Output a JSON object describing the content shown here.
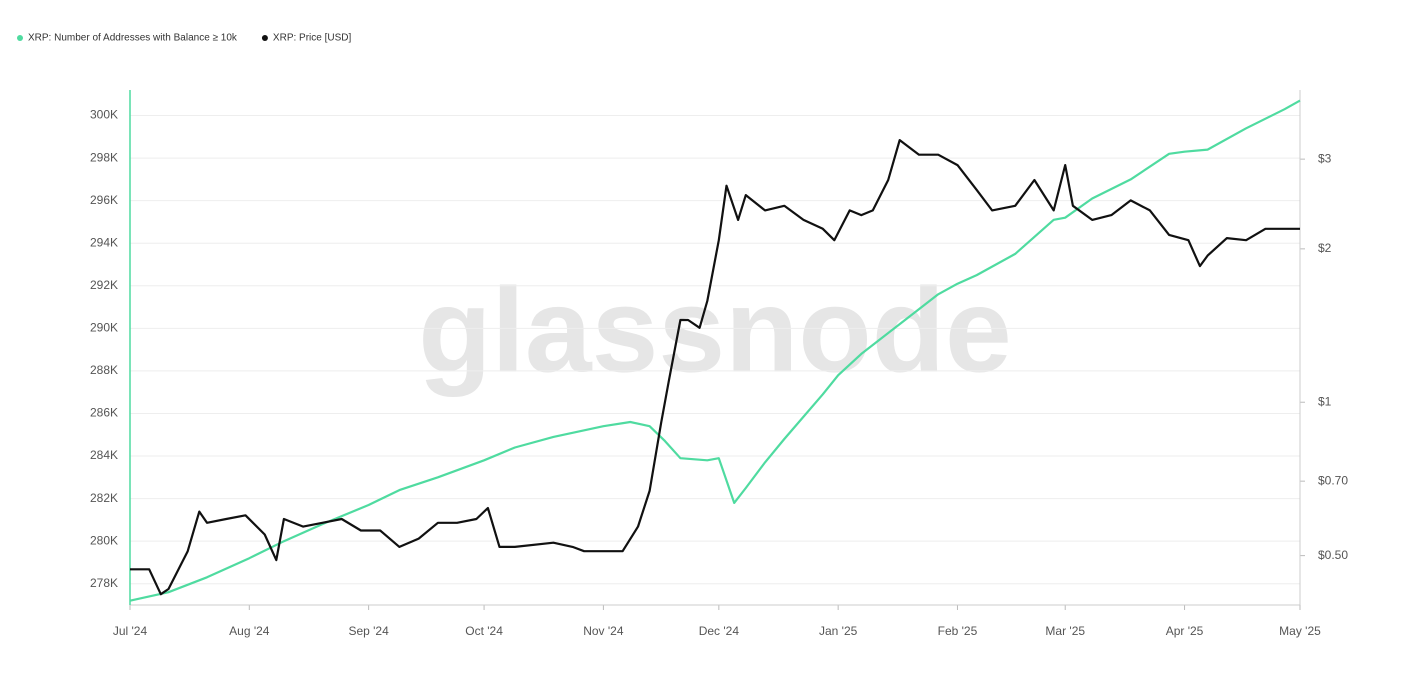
{
  "chart_data": {
    "type": "line",
    "watermark": "glassnode",
    "xlim": [
      0,
      304
    ],
    "xticks": [
      {
        "value": 0,
        "label": "Jul '24"
      },
      {
        "value": 31,
        "label": "Aug '24"
      },
      {
        "value": 62,
        "label": "Sep '24"
      },
      {
        "value": 92,
        "label": "Oct '24"
      },
      {
        "value": 123,
        "label": "Nov '24"
      },
      {
        "value": 153,
        "label": "Dec '24"
      },
      {
        "value": 184,
        "label": "Jan '25"
      },
      {
        "value": 215,
        "label": "Feb '25"
      },
      {
        "value": 243,
        "label": "Mar '25"
      },
      {
        "value": 274,
        "label": "Apr '25"
      },
      {
        "value": 304,
        "label": "May '25"
      }
    ],
    "ylim": [
      277000,
      301200
    ],
    "yticks": [
      {
        "value": 278000,
        "label": "278K"
      },
      {
        "value": 280000,
        "label": "280K"
      },
      {
        "value": 282000,
        "label": "282K"
      },
      {
        "value": 284000,
        "label": "284K"
      },
      {
        "value": 286000,
        "label": "286K"
      },
      {
        "value": 288000,
        "label": "288K"
      },
      {
        "value": 290000,
        "label": "290K"
      },
      {
        "value": 292000,
        "label": "292K"
      },
      {
        "value": 294000,
        "label": "294K"
      },
      {
        "value": 296000,
        "label": "296K"
      },
      {
        "value": 298000,
        "label": "298K"
      },
      {
        "value": 300000,
        "label": "300K"
      }
    ],
    "y2lim": [
      0.4,
      4.1
    ],
    "y2scale": "log",
    "y2ticks": [
      {
        "value": 0.5,
        "label": "$0.50"
      },
      {
        "value": 0.7,
        "label": "$0.70"
      },
      {
        "value": 1,
        "label": "$1"
      },
      {
        "value": 2,
        "label": "$2"
      },
      {
        "value": 3,
        "label": "$3"
      }
    ],
    "grid": true,
    "legend": "top-left",
    "series": [
      {
        "name": "XRP: Number of Addresses with Balance ≥ 10k",
        "color": "#4fdba0",
        "x": [
          0,
          10,
          20,
          31,
          40,
          50,
          62,
          70,
          80,
          92,
          100,
          110,
          123,
          130,
          135,
          139,
          143,
          150,
          153,
          157,
          160,
          165,
          170,
          180,
          184,
          190,
          200,
          210,
          215,
          220,
          230,
          240,
          243,
          250,
          260,
          270,
          274,
          280,
          290,
          300,
          304
        ],
        "values": [
          277200,
          277600,
          278300,
          279200,
          280000,
          280800,
          281700,
          282400,
          283000,
          283800,
          284400,
          284900,
          285400,
          285600,
          285400,
          284700,
          283900,
          283800,
          283900,
          281800,
          282500,
          283700,
          284800,
          286900,
          287800,
          288800,
          290200,
          291600,
          292100,
          292500,
          293500,
          295100,
          295200,
          296100,
          297000,
          298200,
          298300,
          298400,
          299400,
          300300,
          300700
        ]
      },
      {
        "name": "XRP: Price [USD]",
        "color": "#111111",
        "axis": "y2",
        "x": [
          0,
          5,
          8,
          10,
          15,
          18,
          20,
          25,
          30,
          35,
          38,
          40,
          45,
          50,
          55,
          60,
          65,
          70,
          75,
          80,
          85,
          90,
          93,
          96,
          100,
          110,
          115,
          118,
          125,
          128,
          132,
          135,
          138,
          140,
          143,
          145,
          148,
          150,
          153,
          155,
          158,
          160,
          165,
          170,
          175,
          180,
          183,
          187,
          190,
          193,
          197,
          200,
          205,
          210,
          215,
          220,
          224,
          230,
          235,
          240,
          243,
          245,
          250,
          255,
          260,
          265,
          270,
          275,
          278,
          280,
          285,
          290,
          295,
          300,
          304
        ],
        "values": [
          0.47,
          0.47,
          0.42,
          0.43,
          0.51,
          0.61,
          0.58,
          0.59,
          0.6,
          0.55,
          0.49,
          0.59,
          0.57,
          0.58,
          0.59,
          0.56,
          0.56,
          0.52,
          0.54,
          0.58,
          0.58,
          0.59,
          0.62,
          0.52,
          0.52,
          0.53,
          0.52,
          0.51,
          0.51,
          0.51,
          0.57,
          0.67,
          0.91,
          1.1,
          1.45,
          1.45,
          1.4,
          1.58,
          2.08,
          2.66,
          2.28,
          2.55,
          2.38,
          2.43,
          2.28,
          2.19,
          2.08,
          2.38,
          2.33,
          2.38,
          2.73,
          3.27,
          3.06,
          3.06,
          2.92,
          2.61,
          2.38,
          2.43,
          2.73,
          2.38,
          2.92,
          2.43,
          2.28,
          2.33,
          2.49,
          2.38,
          2.13,
          2.08,
          1.85,
          1.94,
          2.1,
          2.08,
          2.19,
          2.19,
          2.19
        ]
      }
    ]
  }
}
